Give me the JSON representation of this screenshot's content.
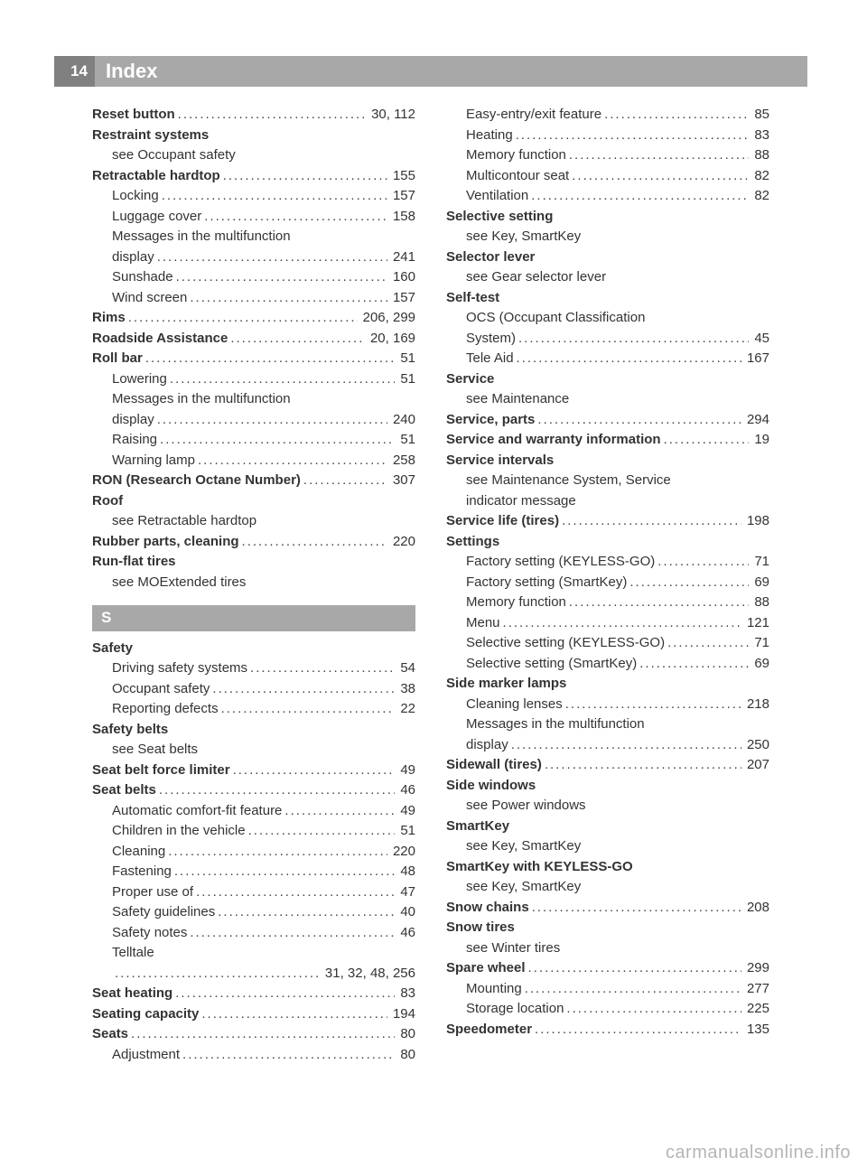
{
  "page_number": "14",
  "header_title": "Index",
  "section_letter": "S",
  "watermark": "carmanualsonline.info",
  "left": [
    {
      "label": "Reset button",
      "bold": true,
      "page": "30, 112"
    },
    {
      "label": "Restraint systems",
      "bold": true,
      "noPage": true
    },
    {
      "label": "see Occupant safety",
      "sub": true,
      "noPage": true
    },
    {
      "label": "Retractable hardtop",
      "bold": true,
      "page": "155"
    },
    {
      "label": "Locking",
      "sub": true,
      "page": "157"
    },
    {
      "label": "Luggage cover",
      "sub": true,
      "page": "158"
    },
    {
      "label": "Messages in the multifunction",
      "sub": true,
      "noPage": true
    },
    {
      "label": "display",
      "sub": true,
      "page": "241"
    },
    {
      "label": "Sunshade",
      "sub": true,
      "page": "160"
    },
    {
      "label": "Wind screen",
      "sub": true,
      "page": "157"
    },
    {
      "label": "Rims",
      "bold": true,
      "page": "206, 299"
    },
    {
      "label": "Roadside Assistance",
      "bold": true,
      "page": "20, 169"
    },
    {
      "label": "Roll bar",
      "bold": true,
      "page": "51"
    },
    {
      "label": "Lowering",
      "sub": true,
      "page": "51"
    },
    {
      "label": "Messages in the multifunction",
      "sub": true,
      "noPage": true
    },
    {
      "label": "display",
      "sub": true,
      "page": "240"
    },
    {
      "label": "Raising",
      "sub": true,
      "page": "51"
    },
    {
      "label": "Warning lamp",
      "sub": true,
      "page": "258"
    },
    {
      "label": "RON (Research Octane Number)",
      "bold": true,
      "page": "307"
    },
    {
      "label": "Roof",
      "bold": true,
      "noPage": true
    },
    {
      "label": "see Retractable hardtop",
      "sub": true,
      "noPage": true
    },
    {
      "label": "Rubber parts, cleaning",
      "bold": true,
      "page": "220"
    },
    {
      "label": "Run-flat tires",
      "bold": true,
      "noPage": true
    },
    {
      "label": "see MOExtended tires",
      "sub": true,
      "noPage": true
    },
    {
      "section": true
    },
    {
      "label": "Safety",
      "bold": true,
      "noPage": true
    },
    {
      "label": "Driving safety systems",
      "sub": true,
      "page": "54"
    },
    {
      "label": "Occupant safety",
      "sub": true,
      "page": "38"
    },
    {
      "label": "Reporting defects",
      "sub": true,
      "page": "22"
    },
    {
      "label": "Safety belts",
      "bold": true,
      "noPage": true
    },
    {
      "label": "see Seat belts",
      "sub": true,
      "noPage": true
    },
    {
      "label": "Seat belt force limiter",
      "bold": true,
      "page": "49"
    },
    {
      "label": "Seat belts",
      "bold": true,
      "page": "46"
    },
    {
      "label": "Automatic comfort-fit feature",
      "sub": true,
      "page": "49"
    },
    {
      "label": "Children in the vehicle",
      "sub": true,
      "page": "51"
    },
    {
      "label": "Cleaning",
      "sub": true,
      "page": "220"
    },
    {
      "label": "Fastening",
      "sub": true,
      "page": "48"
    },
    {
      "label": "Proper use of",
      "sub": true,
      "page": "47"
    },
    {
      "label": "Safety guidelines",
      "sub": true,
      "page": "40"
    },
    {
      "label": "Safety notes",
      "sub": true,
      "page": "46"
    },
    {
      "label": "Telltale",
      "sub": true,
      "noPage": true
    },
    {
      "label": "",
      "sub": true,
      "wrap": true,
      "page": "31, 32, 48, 256"
    },
    {
      "label": "Seat heating",
      "bold": true,
      "page": "83"
    },
    {
      "label": "Seating capacity",
      "bold": true,
      "page": "194"
    },
    {
      "label": "Seats",
      "bold": true,
      "page": "80"
    },
    {
      "label": "Adjustment",
      "sub": true,
      "page": "80"
    }
  ],
  "right": [
    {
      "label": "Easy-entry/exit feature",
      "sub": true,
      "page": "85"
    },
    {
      "label": "Heating",
      "sub": true,
      "page": "83"
    },
    {
      "label": "Memory function",
      "sub": true,
      "page": "88"
    },
    {
      "label": "Multicontour seat",
      "sub": true,
      "page": "82"
    },
    {
      "label": "Ventilation",
      "sub": true,
      "page": "82"
    },
    {
      "label": "Selective setting",
      "bold": true,
      "noPage": true
    },
    {
      "label": "see Key, SmartKey",
      "sub": true,
      "noPage": true
    },
    {
      "label": "Selector lever",
      "bold": true,
      "noPage": true
    },
    {
      "label": "see Gear selector lever",
      "sub": true,
      "noPage": true
    },
    {
      "label": "Self-test",
      "bold": true,
      "noPage": true
    },
    {
      "label": "OCS (Occupant Classification",
      "sub": true,
      "noPage": true
    },
    {
      "label": "System)",
      "sub": true,
      "page": "45"
    },
    {
      "label": "Tele Aid",
      "sub": true,
      "page": "167"
    },
    {
      "label": "Service",
      "bold": true,
      "noPage": true
    },
    {
      "label": "see Maintenance",
      "sub": true,
      "noPage": true
    },
    {
      "label": "Service, parts",
      "bold": true,
      "page": "294"
    },
    {
      "label": "Service and warranty information",
      "bold": true,
      "page": "19"
    },
    {
      "label": "Service intervals",
      "bold": true,
      "noPage": true
    },
    {
      "label": "see Maintenance System, Service",
      "sub": true,
      "noPage": true
    },
    {
      "label": "indicator message",
      "sub": true,
      "noPage": true
    },
    {
      "label": "Service life (tires)",
      "bold": true,
      "page": "198"
    },
    {
      "label": "Settings",
      "bold": true,
      "noPage": true
    },
    {
      "label": "Factory setting (KEYLESS-GO)",
      "sub": true,
      "page": "71"
    },
    {
      "label": "Factory setting (SmartKey)",
      "sub": true,
      "page": "69"
    },
    {
      "label": "Memory function",
      "sub": true,
      "page": "88"
    },
    {
      "label": "Menu",
      "sub": true,
      "page": "121"
    },
    {
      "label": "Selective setting (KEYLESS-GO)",
      "sub": true,
      "page": "71"
    },
    {
      "label": "Selective setting (SmartKey)",
      "sub": true,
      "page": "69"
    },
    {
      "label": "Side marker lamps",
      "bold": true,
      "noPage": true
    },
    {
      "label": "Cleaning lenses",
      "sub": true,
      "page": "218"
    },
    {
      "label": "Messages in the multifunction",
      "sub": true,
      "noPage": true
    },
    {
      "label": "display",
      "sub": true,
      "page": "250"
    },
    {
      "label": "Sidewall (tires)",
      "bold": true,
      "page": "207"
    },
    {
      "label": "Side windows",
      "bold": true,
      "noPage": true
    },
    {
      "label": "see Power windows",
      "sub": true,
      "noPage": true
    },
    {
      "label": "SmartKey",
      "bold": true,
      "noPage": true
    },
    {
      "label": "see Key, SmartKey",
      "sub": true,
      "noPage": true
    },
    {
      "label": "SmartKey with KEYLESS-GO",
      "bold": true,
      "noPage": true
    },
    {
      "label": "see Key, SmartKey",
      "sub": true,
      "noPage": true
    },
    {
      "label": "Snow chains",
      "bold": true,
      "page": "208"
    },
    {
      "label": "Snow tires",
      "bold": true,
      "noPage": true
    },
    {
      "label": "see Winter tires",
      "sub": true,
      "noPage": true
    },
    {
      "label": "Spare wheel",
      "bold": true,
      "page": "299"
    },
    {
      "label": "Mounting",
      "sub": true,
      "page": "277"
    },
    {
      "label": "Storage location",
      "sub": true,
      "page": "225"
    },
    {
      "label": "Speedometer",
      "bold": true,
      "page": "135"
    }
  ]
}
